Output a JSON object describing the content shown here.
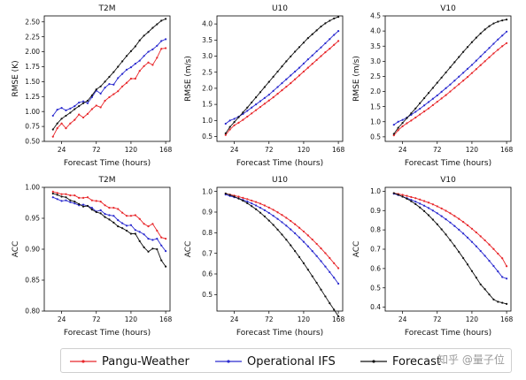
{
  "chart_data": [
    {
      "type": "line",
      "title": "T2M",
      "xlabel": "Forecast Time (hours)",
      "ylabel": "RMSE (K)",
      "xlim": [
        0,
        174
      ],
      "ylim": [
        0.5,
        2.6
      ],
      "xticks": [
        24,
        72,
        120,
        168
      ],
      "yticks": [
        0.5,
        0.75,
        1.0,
        1.25,
        1.5,
        1.75,
        2.0,
        2.25,
        2.5
      ],
      "ytick_labels": [
        "0.50",
        "0.75",
        "1.00",
        "1.25",
        "1.50",
        "1.75",
        "2.00",
        "2.25",
        "2.50"
      ],
      "x": [
        12,
        18,
        24,
        30,
        36,
        42,
        48,
        54,
        60,
        66,
        72,
        78,
        84,
        90,
        96,
        102,
        108,
        114,
        120,
        126,
        132,
        138,
        144,
        150,
        156,
        162,
        168
      ],
      "series": [
        {
          "name": "Pangu-Weather",
          "values": [
            0.58,
            0.72,
            0.8,
            0.72,
            0.8,
            0.86,
            0.95,
            0.9,
            0.96,
            1.04,
            1.1,
            1.07,
            1.18,
            1.24,
            1.29,
            1.34,
            1.42,
            1.48,
            1.55,
            1.55,
            1.68,
            1.76,
            1.82,
            1.78,
            1.9,
            2.05,
            2.06
          ]
        },
        {
          "name": "Operational IFS",
          "values": [
            0.93,
            1.03,
            1.06,
            1.02,
            1.05,
            1.09,
            1.15,
            1.17,
            1.14,
            1.24,
            1.35,
            1.3,
            1.4,
            1.46,
            1.45,
            1.56,
            1.63,
            1.7,
            1.74,
            1.8,
            1.85,
            1.93,
            2.0,
            2.04,
            2.1,
            2.18,
            2.21
          ]
        },
        {
          "name": "Forecast",
          "values": [
            0.7,
            0.8,
            0.88,
            0.93,
            0.98,
            1.04,
            1.09,
            1.14,
            1.18,
            1.27,
            1.37,
            1.42,
            1.5,
            1.58,
            1.66,
            1.75,
            1.84,
            1.93,
            2.01,
            2.09,
            2.19,
            2.27,
            2.33,
            2.4,
            2.46,
            2.52,
            2.55
          ]
        }
      ]
    },
    {
      "type": "line",
      "title": "U10",
      "xlabel": "Forecast Time (hours)",
      "ylabel": "RMSE (m/s)",
      "xlim": [
        0,
        174
      ],
      "ylim": [
        0.35,
        4.25
      ],
      "xticks": [
        24,
        72,
        120,
        168
      ],
      "yticks": [
        0.5,
        1.0,
        1.5,
        2.0,
        2.5,
        3.0,
        3.5,
        4.0
      ],
      "ytick_labels": [
        "0.5",
        "1.0",
        "1.5",
        "2.0",
        "2.5",
        "3.0",
        "3.5",
        "4.0"
      ],
      "x": [
        12,
        18,
        24,
        30,
        36,
        42,
        48,
        54,
        60,
        66,
        72,
        78,
        84,
        90,
        96,
        102,
        108,
        114,
        120,
        126,
        132,
        138,
        144,
        150,
        156,
        162,
        168
      ],
      "series": [
        {
          "name": "Pangu-Weather",
          "values": [
            0.55,
            0.72,
            0.85,
            0.93,
            1.02,
            1.12,
            1.22,
            1.32,
            1.42,
            1.52,
            1.62,
            1.72,
            1.83,
            1.94,
            2.05,
            2.16,
            2.28,
            2.4,
            2.52,
            2.64,
            2.76,
            2.88,
            3.0,
            3.12,
            3.23,
            3.35,
            3.47
          ]
        },
        {
          "name": "Operational IFS",
          "values": [
            0.9,
            1.0,
            1.05,
            1.12,
            1.2,
            1.3,
            1.4,
            1.5,
            1.6,
            1.7,
            1.8,
            1.92,
            2.04,
            2.16,
            2.28,
            2.4,
            2.52,
            2.64,
            2.77,
            2.9,
            3.02,
            3.15,
            3.27,
            3.4,
            3.53,
            3.66,
            3.78
          ]
        },
        {
          "name": "Forecast",
          "values": [
            0.6,
            0.8,
            0.95,
            1.1,
            1.25,
            1.4,
            1.56,
            1.72,
            1.88,
            2.04,
            2.2,
            2.36,
            2.52,
            2.68,
            2.84,
            2.99,
            3.14,
            3.28,
            3.42,
            3.56,
            3.68,
            3.8,
            3.92,
            4.02,
            4.1,
            4.17,
            4.22
          ]
        }
      ]
    },
    {
      "type": "line",
      "title": "V10",
      "xlabel": "Forecast Time (hours)",
      "ylabel": "RMSE (m/s)",
      "xlim": [
        0,
        174
      ],
      "ylim": [
        0.35,
        4.5
      ],
      "xticks": [
        24,
        72,
        120,
        168
      ],
      "yticks": [
        0.5,
        1.0,
        1.5,
        2.0,
        2.5,
        3.0,
        3.5,
        4.0,
        4.5
      ],
      "ytick_labels": [
        "0.5",
        "1.0",
        "1.5",
        "2.0",
        "2.5",
        "3.0",
        "3.5",
        "4.0",
        "4.5"
      ],
      "x": [
        12,
        18,
        24,
        30,
        36,
        42,
        48,
        54,
        60,
        66,
        72,
        78,
        84,
        90,
        96,
        102,
        108,
        114,
        120,
        126,
        132,
        138,
        144,
        150,
        156,
        162,
        168
      ],
      "series": [
        {
          "name": "Pangu-Weather",
          "values": [
            0.55,
            0.72,
            0.85,
            0.95,
            1.04,
            1.14,
            1.24,
            1.34,
            1.44,
            1.55,
            1.66,
            1.77,
            1.88,
            2.0,
            2.12,
            2.24,
            2.36,
            2.48,
            2.61,
            2.74,
            2.87,
            3.0,
            3.13,
            3.26,
            3.38,
            3.5,
            3.6
          ]
        },
        {
          "name": "Operational IFS",
          "values": [
            0.9,
            1.0,
            1.06,
            1.14,
            1.23,
            1.33,
            1.43,
            1.54,
            1.65,
            1.76,
            1.87,
            1.99,
            2.11,
            2.23,
            2.36,
            2.49,
            2.62,
            2.75,
            2.88,
            3.02,
            3.16,
            3.3,
            3.44,
            3.58,
            3.72,
            3.85,
            3.98
          ]
        },
        {
          "name": "Forecast",
          "values": [
            0.6,
            0.8,
            0.96,
            1.12,
            1.28,
            1.44,
            1.61,
            1.78,
            1.95,
            2.12,
            2.29,
            2.46,
            2.63,
            2.8,
            2.97,
            3.14,
            3.31,
            3.47,
            3.63,
            3.78,
            3.92,
            4.05,
            4.16,
            4.25,
            4.31,
            4.35,
            4.38
          ]
        }
      ]
    },
    {
      "type": "line",
      "title": "T2M",
      "xlabel": "Forecast Time (hours)",
      "ylabel": "ACC",
      "xlim": [
        0,
        174
      ],
      "ylim": [
        0.8,
        1.0
      ],
      "xticks": [
        24,
        72,
        120,
        168
      ],
      "yticks": [
        0.8,
        0.85,
        0.9,
        0.95,
        1.0
      ],
      "ytick_labels": [
        "0.80",
        "0.85",
        "0.90",
        "0.95",
        "1.00"
      ],
      "x": [
        12,
        18,
        24,
        30,
        36,
        42,
        48,
        54,
        60,
        66,
        72,
        78,
        84,
        90,
        96,
        102,
        108,
        114,
        120,
        126,
        132,
        138,
        144,
        150,
        156,
        162,
        168
      ],
      "series": [
        {
          "name": "Pangu-Weather",
          "values": [
            0.993,
            0.991,
            0.989,
            0.989,
            0.987,
            0.987,
            0.983,
            0.983,
            0.984,
            0.979,
            0.978,
            0.977,
            0.971,
            0.967,
            0.967,
            0.965,
            0.959,
            0.954,
            0.954,
            0.955,
            0.949,
            0.941,
            0.937,
            0.941,
            0.93,
            0.919,
            0.917
          ]
        },
        {
          "name": "Operational IFS",
          "values": [
            0.984,
            0.981,
            0.978,
            0.979,
            0.976,
            0.974,
            0.971,
            0.972,
            0.97,
            0.967,
            0.961,
            0.963,
            0.957,
            0.955,
            0.954,
            0.947,
            0.942,
            0.938,
            0.939,
            0.931,
            0.928,
            0.924,
            0.917,
            0.915,
            0.917,
            0.906,
            0.897
          ]
        },
        {
          "name": "Forecast",
          "values": [
            0.99,
            0.988,
            0.985,
            0.984,
            0.979,
            0.977,
            0.973,
            0.969,
            0.97,
            0.964,
            0.96,
            0.958,
            0.952,
            0.948,
            0.943,
            0.937,
            0.934,
            0.93,
            0.925,
            0.925,
            0.913,
            0.903,
            0.896,
            0.901,
            0.9,
            0.882,
            0.872
          ]
        }
      ]
    },
    {
      "type": "line",
      "title": "U10",
      "xlabel": "Forecast Time (hours)",
      "ylabel": "ACC",
      "xlim": [
        0,
        174
      ],
      "ylim": [
        0.42,
        1.02
      ],
      "xticks": [
        24,
        72,
        120,
        168
      ],
      "yticks": [
        0.5,
        0.6,
        0.7,
        0.8,
        0.9,
        1.0
      ],
      "ytick_labels": [
        "0.5",
        "0.6",
        "0.7",
        "0.8",
        "0.9",
        "1.0"
      ],
      "x": [
        12,
        18,
        24,
        30,
        36,
        42,
        48,
        54,
        60,
        66,
        72,
        78,
        84,
        90,
        96,
        102,
        108,
        114,
        120,
        126,
        132,
        138,
        144,
        150,
        156,
        162,
        168
      ],
      "series": [
        {
          "name": "Pangu-Weather",
          "values": [
            0.99,
            0.985,
            0.98,
            0.975,
            0.969,
            0.963,
            0.956,
            0.949,
            0.941,
            0.932,
            0.922,
            0.911,
            0.899,
            0.886,
            0.872,
            0.857,
            0.841,
            0.824,
            0.806,
            0.787,
            0.767,
            0.746,
            0.724,
            0.701,
            0.677,
            0.652,
            0.628
          ]
        },
        {
          "name": "Operational IFS",
          "values": [
            0.985,
            0.978,
            0.972,
            0.966,
            0.959,
            0.951,
            0.942,
            0.932,
            0.921,
            0.909,
            0.896,
            0.882,
            0.867,
            0.851,
            0.834,
            0.816,
            0.797,
            0.777,
            0.756,
            0.734,
            0.711,
            0.687,
            0.662,
            0.636,
            0.609,
            0.582,
            0.553
          ]
        },
        {
          "name": "Forecast",
          "values": [
            0.99,
            0.983,
            0.975,
            0.966,
            0.955,
            0.943,
            0.929,
            0.914,
            0.897,
            0.879,
            0.859,
            0.838,
            0.815,
            0.791,
            0.766,
            0.739,
            0.711,
            0.682,
            0.652,
            0.621,
            0.589,
            0.557,
            0.524,
            0.491,
            0.458,
            0.427,
            0.395
          ]
        }
      ]
    },
    {
      "type": "line",
      "title": "V10",
      "xlabel": "Forecast Time (hours)",
      "ylabel": "ACC",
      "xlim": [
        0,
        174
      ],
      "ylim": [
        0.38,
        1.02
      ],
      "xticks": [
        24,
        72,
        120,
        168
      ],
      "yticks": [
        0.4,
        0.5,
        0.6,
        0.7,
        0.8,
        0.9,
        1.0
      ],
      "ytick_labels": [
        "0.4",
        "0.5",
        "0.6",
        "0.7",
        "0.8",
        "0.9",
        "1.0"
      ],
      "x": [
        12,
        18,
        24,
        30,
        36,
        42,
        48,
        54,
        60,
        66,
        72,
        78,
        84,
        90,
        96,
        102,
        108,
        114,
        120,
        126,
        132,
        138,
        144,
        150,
        156,
        162,
        168
      ],
      "series": [
        {
          "name": "Pangu-Weather",
          "values": [
            0.99,
            0.986,
            0.981,
            0.976,
            0.97,
            0.964,
            0.957,
            0.949,
            0.941,
            0.932,
            0.922,
            0.911,
            0.899,
            0.886,
            0.872,
            0.857,
            0.841,
            0.824,
            0.806,
            0.787,
            0.767,
            0.746,
            0.724,
            0.701,
            0.677,
            0.653,
            0.612
          ]
        },
        {
          "name": "Operational IFS",
          "values": [
            0.987,
            0.98,
            0.972,
            0.964,
            0.955,
            0.946,
            0.936,
            0.925,
            0.913,
            0.9,
            0.886,
            0.871,
            0.855,
            0.838,
            0.82,
            0.801,
            0.781,
            0.76,
            0.738,
            0.715,
            0.691,
            0.666,
            0.64,
            0.613,
            0.585,
            0.556,
            0.548
          ]
        },
        {
          "name": "Forecast",
          "values": [
            0.99,
            0.982,
            0.972,
            0.961,
            0.948,
            0.933,
            0.916,
            0.897,
            0.876,
            0.853,
            0.829,
            0.803,
            0.776,
            0.747,
            0.717,
            0.686,
            0.654,
            0.621,
            0.587,
            0.553,
            0.518,
            0.493,
            0.466,
            0.44,
            0.428,
            0.423,
            0.417
          ]
        }
      ]
    }
  ],
  "colors": {
    "Pangu-Weather": "#e8262a",
    "Operational IFS": "#2a2acf",
    "Forecast": "#111111"
  },
  "legend": {
    "items": [
      {
        "label": "Pangu-Weather",
        "color": "#e8262a"
      },
      {
        "label": "Operational IFS",
        "color": "#2a2acf"
      },
      {
        "label": "Forecast",
        "color": "#111111"
      }
    ]
  },
  "watermark": "知乎 @量子位"
}
